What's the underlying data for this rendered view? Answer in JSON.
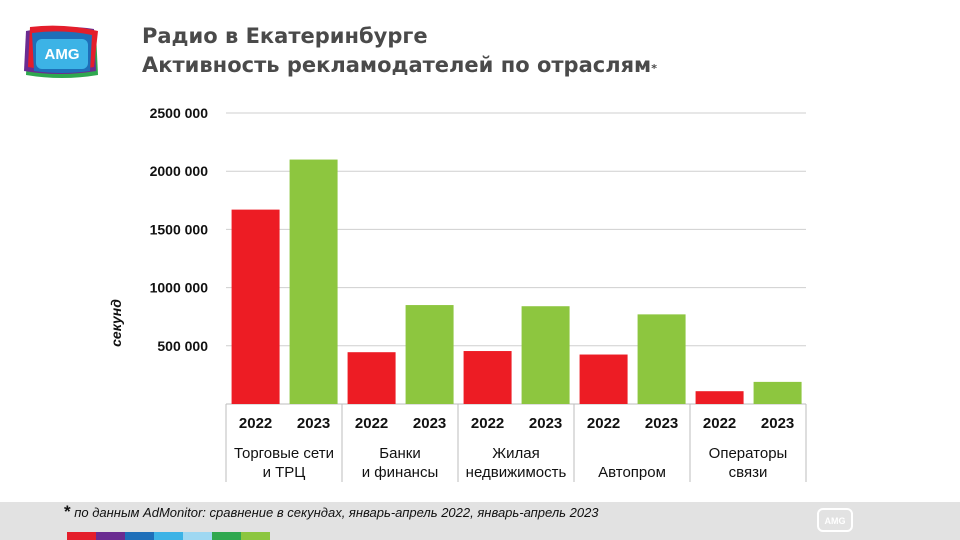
{
  "header": {
    "title_line1": "Радио в Екатеринбурге",
    "title_line2": "Активность рекламодателей по отраслям",
    "title_marker": "*",
    "logo_text": "AMG"
  },
  "footer": {
    "note_marker": "*",
    "note": " по данным AdMonitor: сравнение в секундах, январь-апрель 2022, январь-апрель 2023",
    "logo_text": "AMG",
    "stripe_colors": [
      "#e41e2b",
      "#6a2c91",
      "#1e6fb9",
      "#3cb3e6",
      "#9fd8f2",
      "#2fa84f",
      "#8cc63f"
    ]
  },
  "chart_data": {
    "type": "bar",
    "ylabel": "секунд",
    "ylim": [
      0,
      2500000
    ],
    "yticks": [
      500000,
      1000000,
      1500000,
      2000000,
      2500000
    ],
    "ytick_labels": [
      "500 000",
      "1000 000",
      "1500 000",
      "2000 000",
      "2500 000"
    ],
    "grid": true,
    "colors": {
      "2022": "#ed1c24",
      "2023": "#8dc63f"
    },
    "groups": [
      {
        "label_lines": [
          "Торговые сети",
          "и ТРЦ"
        ],
        "bars": [
          {
            "year": "2022",
            "value": 1670000
          },
          {
            "year": "2023",
            "value": 2100000
          }
        ]
      },
      {
        "label_lines": [
          "Банки",
          "и финансы"
        ],
        "bars": [
          {
            "year": "2022",
            "value": 445000
          },
          {
            "year": "2023",
            "value": 850000
          }
        ]
      },
      {
        "label_lines": [
          "Жилая",
          "недвижимость"
        ],
        "bars": [
          {
            "year": "2022",
            "value": 455000
          },
          {
            "year": "2023",
            "value": 840000
          }
        ]
      },
      {
        "label_lines": [
          "",
          "Автопром"
        ],
        "bars": [
          {
            "year": "2022",
            "value": 425000
          },
          {
            "year": "2023",
            "value": 770000
          }
        ]
      },
      {
        "label_lines": [
          "Операторы",
          "связи"
        ],
        "bars": [
          {
            "year": "2022",
            "value": 110000
          },
          {
            "year": "2023",
            "value": 190000
          }
        ]
      }
    ]
  }
}
